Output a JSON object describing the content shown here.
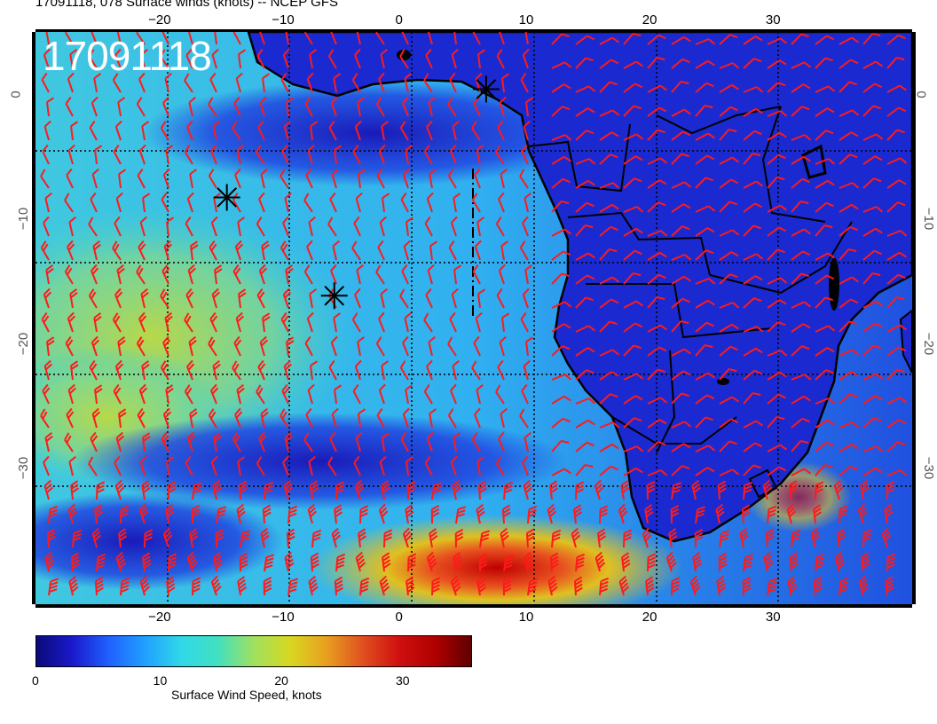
{
  "title": "17091118, 078 Surface winds (knots) -- NCEP GFS",
  "stamp": "17091118",
  "map": {
    "lon_range": [
      -30,
      41
    ],
    "lat_range": [
      -41,
      5
    ],
    "lon_ticks": [
      -20,
      -10,
      0,
      10,
      20,
      30
    ],
    "lat_ticks": [
      0,
      -10,
      -20,
      -30
    ],
    "top_lon_labels": [
      "−20",
      "−10",
      "0",
      "10",
      "20",
      "30"
    ],
    "bottom_lon_labels": [
      "−20",
      "−10",
      "0",
      "10",
      "20",
      "30"
    ],
    "left_lat_labels": [
      "0",
      "−10",
      "−20",
      "−30"
    ],
    "right_lat_labels": [
      "0",
      "−10",
      "−20",
      "−30"
    ],
    "markers": [
      {
        "name": "marker-star-1",
        "lon": 6.5,
        "lat": 0.4
      },
      {
        "name": "marker-star-2",
        "lon": -14.5,
        "lat": -8.3
      },
      {
        "name": "marker-star-3",
        "lon": -5.8,
        "lat": -16.2
      }
    ],
    "barb_color": "#ff1a1a",
    "coast_color": "#000000"
  },
  "colorbar": {
    "label": "Surface Wind Speed, knots",
    "tick_labels": [
      "0",
      "10",
      "20",
      "30"
    ],
    "tick_values": [
      0,
      10,
      20,
      30
    ],
    "range": [
      0,
      36
    ],
    "colors": [
      "#0a0a7a",
      "#1a1acc",
      "#2060ff",
      "#20a0ff",
      "#30d8e8",
      "#40e0c0",
      "#a0e060",
      "#d8d820",
      "#e8a020",
      "#e05020",
      "#d01010",
      "#b00000",
      "#600000"
    ]
  }
}
